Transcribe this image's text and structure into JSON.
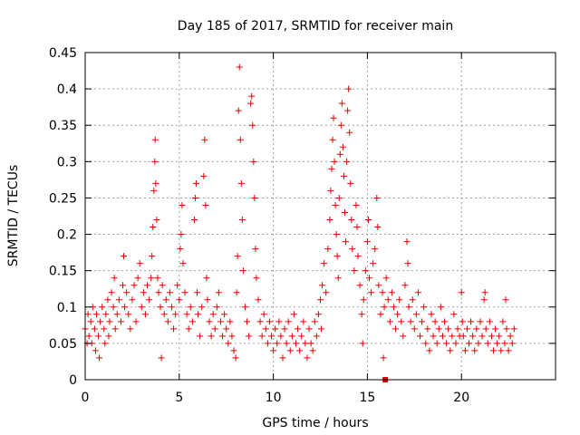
{
  "chart_data": {
    "type": "scatter",
    "title": "Day 185 of 2017, SRMTID for receiver main",
    "xlabel": "GPS time / hours",
    "ylabel": "SRMTID / TECUs",
    "xlim": [
      0,
      25
    ],
    "ylim": [
      0,
      0.45
    ],
    "xticks": [
      "0",
      "5",
      "10",
      "15",
      "20"
    ],
    "xtick_values": [
      0,
      5,
      10,
      15,
      20
    ],
    "yticks": [
      "0",
      "0.05",
      "0.1",
      "0.15",
      "0.2",
      "0.25",
      "0.3",
      "0.35",
      "0.4",
      "0.45"
    ],
    "ytick_values": [
      0,
      0.05,
      0.1,
      0.15,
      0.2,
      0.25,
      0.3,
      0.35,
      0.4,
      0.45
    ],
    "grid": true,
    "marker": "+",
    "color": "#e00000",
    "highlight_marker": {
      "x": 15.95,
      "y": 0.0,
      "shape": "square"
    },
    "series": [
      {
        "name": "SRMTID",
        "points": [
          [
            0.0,
            0.07
          ],
          [
            0.1,
            0.05
          ],
          [
            0.15,
            0.09
          ],
          [
            0.2,
            0.06
          ],
          [
            0.3,
            0.08
          ],
          [
            0.35,
            0.05
          ],
          [
            0.4,
            0.1
          ],
          [
            0.5,
            0.07
          ],
          [
            0.55,
            0.04
          ],
          [
            0.6,
            0.09
          ],
          [
            0.7,
            0.06
          ],
          [
            0.75,
            0.03
          ],
          [
            0.8,
            0.08
          ],
          [
            0.9,
            0.1
          ],
          [
            1.0,
            0.07
          ],
          [
            1.05,
            0.05
          ],
          [
            1.1,
            0.09
          ],
          [
            1.2,
            0.11
          ],
          [
            1.25,
            0.06
          ],
          [
            1.3,
            0.08
          ],
          [
            1.4,
            0.12
          ],
          [
            1.5,
            0.1
          ],
          [
            1.55,
            0.14
          ],
          [
            1.6,
            0.07
          ],
          [
            1.7,
            0.09
          ],
          [
            1.8,
            0.11
          ],
          [
            1.9,
            0.08
          ],
          [
            2.0,
            0.13
          ],
          [
            2.05,
            0.17
          ],
          [
            2.1,
            0.1
          ],
          [
            2.2,
            0.12
          ],
          [
            2.3,
            0.09
          ],
          [
            2.4,
            0.07
          ],
          [
            2.5,
            0.11
          ],
          [
            2.6,
            0.13
          ],
          [
            2.7,
            0.08
          ],
          [
            2.8,
            0.14
          ],
          [
            2.9,
            0.16
          ],
          [
            3.0,
            0.1
          ],
          [
            3.1,
            0.12
          ],
          [
            3.2,
            0.09
          ],
          [
            3.3,
            0.13
          ],
          [
            3.4,
            0.11
          ],
          [
            3.5,
            0.14
          ],
          [
            3.55,
            0.17
          ],
          [
            3.6,
            0.21
          ],
          [
            3.65,
            0.26
          ],
          [
            3.7,
            0.3
          ],
          [
            3.72,
            0.33
          ],
          [
            3.75,
            0.27
          ],
          [
            3.8,
            0.22
          ],
          [
            3.85,
            0.14
          ],
          [
            3.9,
            0.12
          ],
          [
            4.0,
            0.1
          ],
          [
            4.05,
            0.03
          ],
          [
            4.1,
            0.13
          ],
          [
            4.2,
            0.09
          ],
          [
            4.3,
            0.11
          ],
          [
            4.4,
            0.08
          ],
          [
            4.5,
            0.12
          ],
          [
            4.6,
            0.1
          ],
          [
            4.7,
            0.07
          ],
          [
            4.8,
            0.09
          ],
          [
            4.9,
            0.13
          ],
          [
            5.0,
            0.11
          ],
          [
            5.05,
            0.18
          ],
          [
            5.1,
            0.2
          ],
          [
            5.15,
            0.24
          ],
          [
            5.2,
            0.16
          ],
          [
            5.3,
            0.12
          ],
          [
            5.4,
            0.09
          ],
          [
            5.5,
            0.07
          ],
          [
            5.6,
            0.1
          ],
          [
            5.7,
            0.08
          ],
          [
            5.8,
            0.22
          ],
          [
            5.85,
            0.25
          ],
          [
            5.9,
            0.27
          ],
          [
            5.95,
            0.12
          ],
          [
            6.0,
            0.09
          ],
          [
            6.1,
            0.06
          ],
          [
            6.2,
            0.1
          ],
          [
            6.3,
            0.28
          ],
          [
            6.35,
            0.33
          ],
          [
            6.4,
            0.24
          ],
          [
            6.45,
            0.14
          ],
          [
            6.5,
            0.11
          ],
          [
            6.6,
            0.08
          ],
          [
            6.7,
            0.06
          ],
          [
            6.8,
            0.09
          ],
          [
            6.9,
            0.07
          ],
          [
            7.0,
            0.1
          ],
          [
            7.1,
            0.12
          ],
          [
            7.2,
            0.08
          ],
          [
            7.3,
            0.06
          ],
          [
            7.4,
            0.09
          ],
          [
            7.5,
            0.07
          ],
          [
            7.6,
            0.05
          ],
          [
            7.7,
            0.08
          ],
          [
            7.8,
            0.06
          ],
          [
            7.9,
            0.04
          ],
          [
            8.0,
            0.03
          ],
          [
            8.05,
            0.12
          ],
          [
            8.1,
            0.17
          ],
          [
            8.15,
            0.37
          ],
          [
            8.2,
            0.43
          ],
          [
            8.25,
            0.33
          ],
          [
            8.3,
            0.27
          ],
          [
            8.35,
            0.22
          ],
          [
            8.4,
            0.15
          ],
          [
            8.5,
            0.1
          ],
          [
            8.6,
            0.08
          ],
          [
            8.7,
            0.06
          ],
          [
            8.8,
            0.38
          ],
          [
            8.85,
            0.39
          ],
          [
            8.9,
            0.35
          ],
          [
            8.95,
            0.3
          ],
          [
            9.0,
            0.25
          ],
          [
            9.05,
            0.18
          ],
          [
            9.1,
            0.14
          ],
          [
            9.2,
            0.11
          ],
          [
            9.3,
            0.08
          ],
          [
            9.4,
            0.06
          ],
          [
            9.5,
            0.09
          ],
          [
            9.6,
            0.07
          ],
          [
            9.7,
            0.05
          ],
          [
            9.8,
            0.08
          ],
          [
            9.9,
            0.06
          ],
          [
            10.0,
            0.04
          ],
          [
            10.1,
            0.07
          ],
          [
            10.2,
            0.05
          ],
          [
            10.3,
            0.08
          ],
          [
            10.4,
            0.06
          ],
          [
            10.5,
            0.03
          ],
          [
            10.6,
            0.07
          ],
          [
            10.7,
            0.05
          ],
          [
            10.8,
            0.08
          ],
          [
            10.9,
            0.04
          ],
          [
            11.0,
            0.06
          ],
          [
            11.1,
            0.09
          ],
          [
            11.2,
            0.05
          ],
          [
            11.3,
            0.07
          ],
          [
            11.4,
            0.04
          ],
          [
            11.5,
            0.06
          ],
          [
            11.6,
            0.08
          ],
          [
            11.7,
            0.05
          ],
          [
            11.8,
            0.03
          ],
          [
            11.9,
            0.07
          ],
          [
            12.0,
            0.05
          ],
          [
            12.1,
            0.04
          ],
          [
            12.2,
            0.08
          ],
          [
            12.3,
            0.06
          ],
          [
            12.4,
            0.09
          ],
          [
            12.5,
            0.11
          ],
          [
            12.55,
            0.07
          ],
          [
            12.6,
            0.13
          ],
          [
            12.7,
            0.16
          ],
          [
            12.8,
            0.12
          ],
          [
            12.9,
            0.18
          ],
          [
            13.0,
            0.22
          ],
          [
            13.05,
            0.26
          ],
          [
            13.1,
            0.29
          ],
          [
            13.15,
            0.33
          ],
          [
            13.2,
            0.36
          ],
          [
            13.25,
            0.3
          ],
          [
            13.3,
            0.24
          ],
          [
            13.35,
            0.2
          ],
          [
            13.4,
            0.17
          ],
          [
            13.45,
            0.14
          ],
          [
            13.5,
            0.25
          ],
          [
            13.55,
            0.31
          ],
          [
            13.6,
            0.35
          ],
          [
            13.65,
            0.38
          ],
          [
            13.7,
            0.32
          ],
          [
            13.75,
            0.28
          ],
          [
            13.8,
            0.23
          ],
          [
            13.85,
            0.19
          ],
          [
            13.9,
            0.3
          ],
          [
            13.95,
            0.37
          ],
          [
            14.0,
            0.4
          ],
          [
            14.05,
            0.34
          ],
          [
            14.1,
            0.27
          ],
          [
            14.15,
            0.22
          ],
          [
            14.2,
            0.18
          ],
          [
            14.3,
            0.15
          ],
          [
            14.4,
            0.24
          ],
          [
            14.45,
            0.21
          ],
          [
            14.5,
            0.17
          ],
          [
            14.6,
            0.13
          ],
          [
            14.7,
            0.09
          ],
          [
            14.75,
            0.05
          ],
          [
            14.8,
            0.11
          ],
          [
            14.9,
            0.15
          ],
          [
            15.0,
            0.19
          ],
          [
            15.05,
            0.22
          ],
          [
            15.1,
            0.14
          ],
          [
            15.2,
            0.12
          ],
          [
            15.3,
            0.16
          ],
          [
            15.4,
            0.18
          ],
          [
            15.5,
            0.25
          ],
          [
            15.55,
            0.21
          ],
          [
            15.6,
            0.13
          ],
          [
            15.7,
            0.09
          ],
          [
            15.8,
            0.12
          ],
          [
            15.85,
            0.03
          ],
          [
            15.9,
            0.1
          ],
          [
            16.0,
            0.14
          ],
          [
            16.1,
            0.11
          ],
          [
            16.2,
            0.08
          ],
          [
            16.3,
            0.12
          ],
          [
            16.4,
            0.1
          ],
          [
            16.5,
            0.07
          ],
          [
            16.6,
            0.09
          ],
          [
            16.7,
            0.11
          ],
          [
            16.8,
            0.08
          ],
          [
            16.9,
            0.06
          ],
          [
            17.0,
            0.13
          ],
          [
            17.1,
            0.19
          ],
          [
            17.15,
            0.16
          ],
          [
            17.2,
            0.1
          ],
          [
            17.3,
            0.08
          ],
          [
            17.4,
            0.11
          ],
          [
            17.5,
            0.07
          ],
          [
            17.6,
            0.09
          ],
          [
            17.7,
            0.12
          ],
          [
            17.8,
            0.06
          ],
          [
            17.9,
            0.08
          ],
          [
            18.0,
            0.1
          ],
          [
            18.1,
            0.05
          ],
          [
            18.2,
            0.07
          ],
          [
            18.3,
            0.04
          ],
          [
            18.4,
            0.09
          ],
          [
            18.5,
            0.06
          ],
          [
            18.6,
            0.08
          ],
          [
            18.7,
            0.05
          ],
          [
            18.8,
            0.07
          ],
          [
            18.9,
            0.1
          ],
          [
            19.0,
            0.06
          ],
          [
            19.1,
            0.08
          ],
          [
            19.2,
            0.05
          ],
          [
            19.3,
            0.07
          ],
          [
            19.4,
            0.04
          ],
          [
            19.5,
            0.06
          ],
          [
            19.6,
            0.09
          ],
          [
            19.7,
            0.05
          ],
          [
            19.8,
            0.07
          ],
          [
            19.9,
            0.06
          ],
          [
            20.0,
            0.12
          ],
          [
            20.05,
            0.08
          ],
          [
            20.1,
            0.06
          ],
          [
            20.2,
            0.04
          ],
          [
            20.3,
            0.07
          ],
          [
            20.4,
            0.05
          ],
          [
            20.5,
            0.08
          ],
          [
            20.6,
            0.06
          ],
          [
            20.7,
            0.04
          ],
          [
            20.8,
            0.07
          ],
          [
            20.9,
            0.05
          ],
          [
            21.0,
            0.08
          ],
          [
            21.1,
            0.06
          ],
          [
            21.2,
            0.11
          ],
          [
            21.25,
            0.12
          ],
          [
            21.3,
            0.07
          ],
          [
            21.4,
            0.05
          ],
          [
            21.5,
            0.08
          ],
          [
            21.6,
            0.06
          ],
          [
            21.7,
            0.04
          ],
          [
            21.8,
            0.07
          ],
          [
            21.9,
            0.05
          ],
          [
            22.0,
            0.06
          ],
          [
            22.1,
            0.04
          ],
          [
            22.2,
            0.08
          ],
          [
            22.3,
            0.05
          ],
          [
            22.35,
            0.11
          ],
          [
            22.4,
            0.07
          ],
          [
            22.5,
            0.04
          ],
          [
            22.6,
            0.06
          ],
          [
            22.7,
            0.05
          ],
          [
            22.8,
            0.07
          ]
        ]
      }
    ]
  }
}
